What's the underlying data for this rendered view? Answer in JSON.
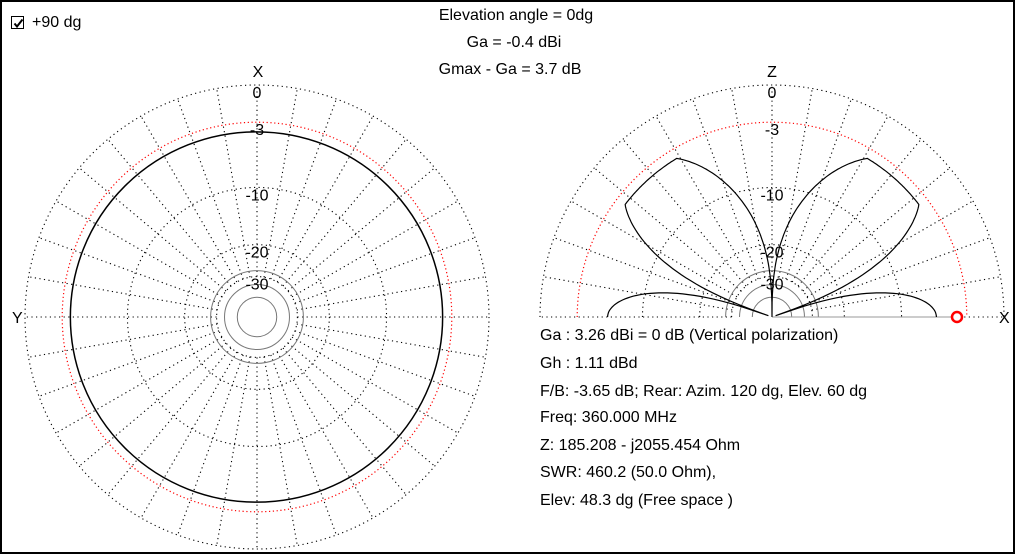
{
  "checkbox": {
    "label": "+90 dg",
    "checked": true
  },
  "header": {
    "elevation_angle": "Elevation angle =   0dg",
    "ga": "Ga = -0.4 dBi",
    "gmax_ga": "Gmax - Ga = 3.7 dB"
  },
  "azimuth_plot": {
    "axis_top": "X",
    "axis_left": "Y",
    "ring_labels": [
      "0",
      "-3",
      "-10",
      "-20",
      "-30"
    ],
    "ring_db_values": [
      0,
      -3,
      -10,
      -20,
      -30
    ],
    "trace_color": "#000000",
    "ref_ring_color": "#ff0000"
  },
  "elevation_plot": {
    "axis_top": "Z",
    "axis_right": "X",
    "ring_labels": [
      "0",
      "-3",
      "-10",
      "-20",
      "-30"
    ],
    "ring_db_values": [
      0,
      -3,
      -10,
      -20,
      -30
    ],
    "trace_color": "#000000",
    "ref_ring_color": "#ff0000",
    "marker_color": "#ff0000"
  },
  "info": {
    "ga": "Ga : 3.26 dBi = 0 dB  (Vertical polarization)",
    "gh": "Gh : 1.11 dBd",
    "fb": "F/B: -3.65 dB; Rear: Azim. 120 dg,  Elev. 60 dg",
    "freq": "Freq: 360.000 MHz",
    "z": "Z: 185.208 - j2055.454 Ohm",
    "swr": "SWR: 460.2 (50.0 Ohm),",
    "elev": "Elev: 48.3 dg (Free space )"
  }
}
